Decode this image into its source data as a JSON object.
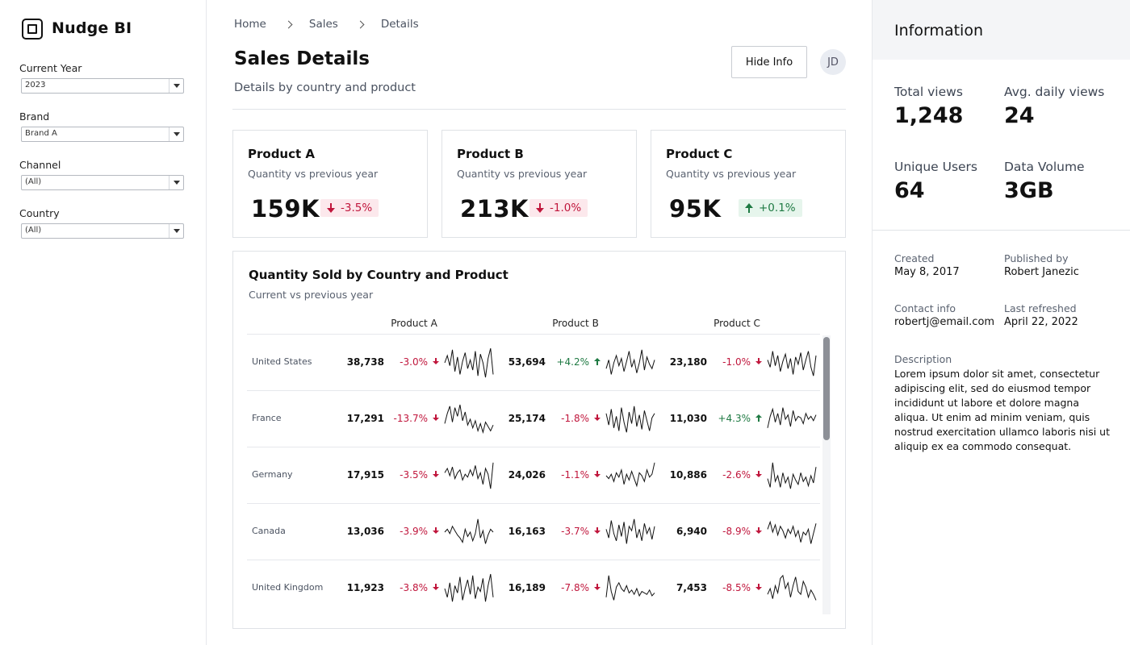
{
  "app": {
    "name": "Nudge BI"
  },
  "filters": [
    {
      "label": "Current Year",
      "value": "2023"
    },
    {
      "label": "Brand",
      "value": "Brand A"
    },
    {
      "label": "Channel",
      "value": "(All)"
    },
    {
      "label": "Country",
      "value": "(All)"
    }
  ],
  "breadcrumb": [
    "Home",
    "Sales",
    "Details"
  ],
  "header": {
    "title": "Sales Details",
    "subtitle": "Details by country and product",
    "hide_info_label": "Hide Info",
    "avatar_initials": "JD"
  },
  "kpis": [
    {
      "title": "Product A",
      "subtitle": "Quantity vs previous year",
      "value": "159K",
      "change": "-3.5%",
      "direction": "down"
    },
    {
      "title": "Product B",
      "subtitle": "Quantity vs previous year",
      "value": "213K",
      "change": "-1.0%",
      "direction": "down"
    },
    {
      "title": "Product C",
      "subtitle": "Quantity vs previous year",
      "value": "95K",
      "change": "+0.1%",
      "direction": "up"
    }
  ],
  "table": {
    "title": "Quantity Sold by Country and Product",
    "subtitle": "Current vs previous year",
    "columns": [
      "Product A",
      "Product B",
      "Product C"
    ],
    "rows": [
      {
        "country": "United States",
        "cells": [
          {
            "value": "38,738",
            "change": "-3.0%",
            "direction": "down",
            "trend": [
              0.5,
              0.75,
              0.4,
              0.95,
              0.2,
              0.7,
              0.1,
              0.55,
              0.85,
              0.3,
              0.6,
              0.25,
              0.9,
              0.05,
              0.8,
              0.5,
              0.0,
              0.65,
              1.0,
              0.1
            ]
          },
          {
            "value": "53,694",
            "change": "+4.2%",
            "direction": "up",
            "trend": [
              0.3,
              0.6,
              0.1,
              0.5,
              0.75,
              0.4,
              0.65,
              0.2,
              0.55,
              0.9,
              0.35,
              0.6,
              0.15,
              0.5,
              0.95,
              0.25,
              0.7,
              0.45,
              0.3,
              0.6
            ]
          },
          {
            "value": "23,180",
            "change": "-1.0%",
            "direction": "down",
            "trend": [
              0.6,
              0.35,
              0.9,
              0.4,
              0.75,
              0.2,
              0.55,
              0.8,
              0.3,
              0.65,
              0.1,
              0.7,
              0.45,
              0.85,
              0.25,
              0.6,
              0.9,
              0.35,
              0.05,
              0.75
            ]
          }
        ]
      },
      {
        "country": "France",
        "cells": [
          {
            "value": "17,291",
            "change": "-13.7%",
            "direction": "down",
            "trend": [
              0.35,
              0.7,
              0.95,
              0.4,
              0.9,
              0.6,
              1.0,
              0.45,
              0.75,
              0.3,
              0.5,
              0.2,
              0.45,
              0.1,
              0.35,
              0.05,
              0.4,
              0.25,
              0.1,
              0.3
            ]
          },
          {
            "value": "25,174",
            "change": "-1.8%",
            "direction": "down",
            "trend": [
              0.7,
              0.3,
              0.85,
              0.2,
              0.6,
              0.1,
              0.9,
              0.4,
              0.05,
              0.75,
              0.35,
              0.95,
              0.25,
              0.65,
              0.15,
              0.8,
              0.45,
              0.1,
              0.55,
              0.7
            ]
          },
          {
            "value": "11,030",
            "change": "+4.3%",
            "direction": "up",
            "trend": [
              0.2,
              0.6,
              0.85,
              0.4,
              0.7,
              0.3,
              0.9,
              0.5,
              0.65,
              0.25,
              0.8,
              0.45,
              0.6,
              0.55,
              0.35,
              0.7,
              0.5,
              0.6,
              0.45,
              0.65
            ]
          }
        ]
      },
      {
        "country": "Germany",
        "cells": [
          {
            "value": "17,915",
            "change": "-3.5%",
            "direction": "down",
            "trend": [
              0.6,
              0.75,
              0.5,
              0.8,
              0.4,
              0.6,
              0.7,
              0.35,
              0.55,
              0.45,
              0.7,
              0.5,
              0.85,
              0.4,
              0.6,
              0.2,
              0.75,
              0.55,
              0.05,
              0.95
            ]
          },
          {
            "value": "24,026",
            "change": "-1.1%",
            "direction": "down",
            "trend": [
              0.5,
              0.4,
              0.55,
              0.3,
              0.6,
              0.45,
              0.7,
              0.2,
              0.55,
              0.35,
              0.65,
              0.4,
              0.15,
              0.6,
              0.5,
              0.3,
              0.7,
              0.45,
              0.55,
              0.95
            ]
          },
          {
            "value": "10,886",
            "change": "-2.6%",
            "direction": "down",
            "trend": [
              0.4,
              0.1,
              0.95,
              0.3,
              0.5,
              0.1,
              0.6,
              0.25,
              0.45,
              0.05,
              0.55,
              0.35,
              0.2,
              0.6,
              0.3,
              0.45,
              0.15,
              0.5,
              0.25,
              0.8
            ]
          }
        ]
      },
      {
        "country": "Canada",
        "cells": [
          {
            "value": "13,036",
            "change": "-3.9%",
            "direction": "down",
            "trend": [
              0.5,
              0.6,
              0.45,
              0.7,
              0.55,
              0.4,
              0.3,
              0.15,
              0.6,
              0.35,
              0.5,
              0.2,
              0.45,
              0.95,
              0.3,
              0.55,
              0.1,
              0.4,
              0.6,
              0.5
            ]
          },
          {
            "value": "16,163",
            "change": "-3.7%",
            "direction": "down",
            "trend": [
              0.6,
              0.3,
              0.9,
              0.45,
              0.2,
              0.75,
              0.35,
              0.85,
              0.1,
              0.7,
              0.55,
              0.95,
              0.3,
              0.6,
              0.2,
              0.8,
              0.45,
              0.65,
              0.25,
              0.7
            ]
          },
          {
            "value": "6,940",
            "change": "-8.9%",
            "direction": "down",
            "trend": [
              0.6,
              0.85,
              0.5,
              0.75,
              0.4,
              0.7,
              0.55,
              0.3,
              0.6,
              0.45,
              0.7,
              0.35,
              0.55,
              0.15,
              0.5,
              0.4,
              0.6,
              0.1,
              0.45,
              0.8
            ]
          }
        ]
      },
      {
        "country": "United Kingdom",
        "cells": [
          {
            "value": "11,923",
            "change": "-3.8%",
            "direction": "down",
            "trend": [
              0.5,
              0.2,
              0.7,
              0.05,
              0.6,
              0.35,
              0.9,
              0.1,
              0.5,
              0.8,
              0.3,
              0.95,
              0.15,
              0.55,
              0.4,
              0.85,
              0.05,
              0.6,
              1.0,
              0.2
            ]
          },
          {
            "value": "16,189",
            "change": "-7.8%",
            "direction": "down",
            "trend": [
              0.2,
              0.95,
              0.4,
              0.1,
              0.55,
              0.7,
              0.5,
              0.4,
              0.6,
              0.35,
              0.45,
              0.3,
              0.5,
              0.25,
              0.4,
              0.35,
              0.3,
              0.45,
              0.25,
              0.35
            ]
          },
          {
            "value": "7,453",
            "change": "-8.5%",
            "direction": "down",
            "trend": [
              0.3,
              0.5,
              0.15,
              0.6,
              0.35,
              0.85,
              0.95,
              0.5,
              0.7,
              0.2,
              0.6,
              0.9,
              0.4,
              0.3,
              0.75,
              0.55,
              0.2,
              0.45,
              0.3,
              0.1
            ]
          }
        ]
      }
    ]
  },
  "info": {
    "title": "Information",
    "stats": [
      {
        "label": "Total views",
        "value": "1,248"
      },
      {
        "label": "Avg. daily views",
        "value": "24"
      },
      {
        "label": "Unique Users",
        "value": "64"
      },
      {
        "label": "Data Volume",
        "value": "3GB"
      }
    ],
    "meta": [
      {
        "label": "Created",
        "value": "May 8, 2017"
      },
      {
        "label": "Published by",
        "value": "Robert Janezic"
      },
      {
        "label": "Contact info",
        "value": "robertj@email.com"
      },
      {
        "label": "Last refreshed",
        "value": "April 22, 2022"
      }
    ],
    "description_label": "Description",
    "description": "Lorem ipsum dolor sit amet, consectetur adipiscing elit, sed do eiusmod tempor incididunt ut labore et dolore magna aliqua. Ut enim ad minim veniam, quis nostrud exercitation ullamco laboris nisi ut aliquip ex ea commodo consequat."
  }
}
